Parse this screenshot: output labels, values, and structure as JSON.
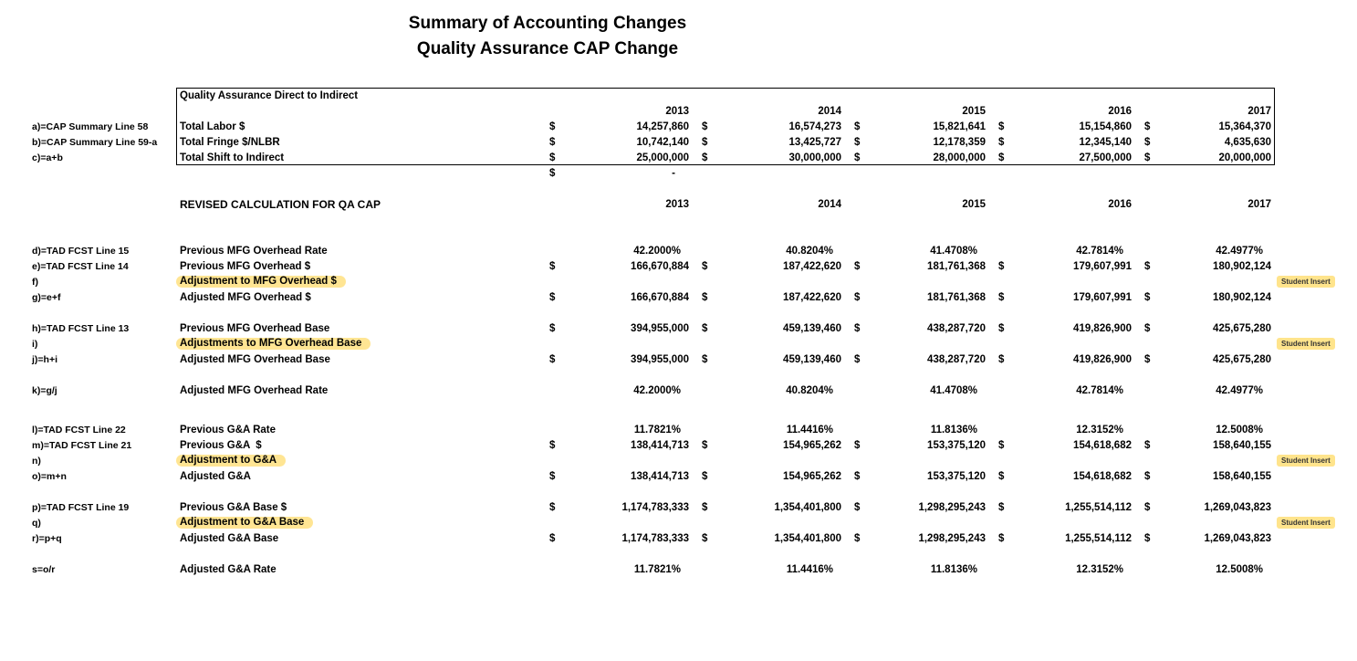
{
  "title": {
    "line1": "Summary of Accounting Changes",
    "line2": "Quality Assurance CAP Change"
  },
  "years": [
    "2013",
    "2014",
    "2015",
    "2016",
    "2017"
  ],
  "student_insert_label": "Student Insert",
  "colors": {
    "highlight": "#ffe593",
    "student_insert_bg": "#ffe48c",
    "text": "#000000",
    "border": "#000000"
  },
  "summary_table": {
    "header": "Quality Assurance Direct to Indirect",
    "rows": [
      {
        "kind": "dollar",
        "code": "a)=CAP Summary Line 58",
        "label": "Total Labor $",
        "values": [
          "14,257,860",
          "16,574,273",
          "15,821,641",
          "15,154,860",
          "15,364,370"
        ]
      },
      {
        "kind": "dollar",
        "code": "b)=CAP Summary Line 59-a",
        "label": "Total Fringe $/NLBR",
        "values": [
          "10,742,140",
          "13,425,727",
          "12,178,359",
          "12,345,140",
          "4,635,630"
        ]
      },
      {
        "kind": "dollar",
        "code": "c)=a+b",
        "label": "Total Shift to Indirect",
        "values": [
          "25,000,000",
          "30,000,000",
          "28,000,000",
          "27,500,000",
          "20,000,000"
        ]
      }
    ],
    "check_row": {
      "currency": "$",
      "value": "-"
    }
  },
  "revised": {
    "title": "REVISED CALCULATION FOR QA CAP",
    "rows": [
      {
        "kind": "spacer",
        "h": 34
      },
      {
        "kind": "percent",
        "code": "d)=TAD FCST Line 15",
        "label": "Previous MFG Overhead Rate",
        "values": [
          "42.2000%",
          "40.8204%",
          "41.4708%",
          "42.7814%",
          "42.4977%"
        ]
      },
      {
        "kind": "dollar",
        "code": "e)=TAD FCST Line 14",
        "label": "Previous MFG Overhead $",
        "values": [
          "166,670,884",
          "187,422,620",
          "181,761,368",
          "179,607,991",
          "180,902,124"
        ]
      },
      {
        "kind": "adjust",
        "code": "f)",
        "label": "Adjustment to MFG Overhead $",
        "values": [
          "",
          "",
          "",
          "",
          ""
        ],
        "student_insert": true
      },
      {
        "kind": "dollar",
        "code": "g)=e+f",
        "label": "Adjusted MFG Overhead $",
        "values": [
          "166,670,884",
          "187,422,620",
          "181,761,368",
          "179,607,991",
          "180,902,124"
        ]
      },
      {
        "kind": "spacer",
        "h": 17
      },
      {
        "kind": "dollar",
        "code": "h)=TAD FCST Line 13",
        "label": "Previous MFG Overhead Base",
        "values": [
          "394,955,000",
          "459,139,460",
          "438,287,720",
          "419,826,900",
          "425,675,280"
        ]
      },
      {
        "kind": "adjust",
        "code": "i)",
        "label": "Adjustments to MFG Overhead Base",
        "values": [
          "",
          "",
          "",
          "",
          ""
        ],
        "student_insert": true
      },
      {
        "kind": "dollar",
        "code": "j)=h+i",
        "label": "Adjusted MFG Overhead Base",
        "values": [
          "394,955,000",
          "459,139,460",
          "438,287,720",
          "419,826,900",
          "425,675,280"
        ]
      },
      {
        "kind": "spacer",
        "h": 17
      },
      {
        "kind": "percent",
        "code": "k)=g/j",
        "label": "Adjusted MFG Overhead Rate",
        "values": [
          "42.2000%",
          "40.8204%",
          "41.4708%",
          "42.7814%",
          "42.4977%"
        ]
      },
      {
        "kind": "spacer",
        "h": 26
      },
      {
        "kind": "percent",
        "code": "l)=TAD FCST Line 22",
        "label": "Previous G&A Rate",
        "values": [
          "11.7821%",
          "11.4416%",
          "11.8136%",
          "12.3152%",
          "12.5008%"
        ]
      },
      {
        "kind": "dollar",
        "code": "m)=TAD FCST Line 21",
        "label": "Previous G&A  $",
        "values": [
          "138,414,713",
          "154,965,262",
          "153,375,120",
          "154,618,682",
          "158,640,155"
        ]
      },
      {
        "kind": "adjust",
        "code": "n)",
        "label": "Adjustment to G&A",
        "values": [
          "",
          "",
          "",
          "",
          ""
        ],
        "student_insert": true
      },
      {
        "kind": "dollar",
        "code": "o)=m+n",
        "label": "Adjusted G&A",
        "values": [
          "138,414,713",
          "154,965,262",
          "153,375,120",
          "154,618,682",
          "158,640,155"
        ]
      },
      {
        "kind": "spacer",
        "h": 17
      },
      {
        "kind": "dollar",
        "code": "p)=TAD FCST Line 19",
        "label": "Previous G&A Base $",
        "values": [
          "1,174,783,333",
          "1,354,401,800",
          "1,298,295,243",
          "1,255,514,112",
          "1,269,043,823"
        ]
      },
      {
        "kind": "adjust",
        "code": "q)",
        "label": "Adjustment to G&A Base",
        "values": [
          "",
          "",
          "",
          "",
          ""
        ],
        "student_insert": true
      },
      {
        "kind": "dollar",
        "code": "r)=p+q",
        "label": "Adjusted G&A Base",
        "values": [
          "1,174,783,333",
          "1,354,401,800",
          "1,298,295,243",
          "1,255,514,112",
          "1,269,043,823"
        ]
      },
      {
        "kind": "spacer",
        "h": 17
      },
      {
        "kind": "percent",
        "code": "s=o/r",
        "label": "Adjusted G&A Rate",
        "values": [
          "11.7821%",
          "11.4416%",
          "11.8136%",
          "12.3152%",
          "12.5008%"
        ]
      }
    ]
  }
}
